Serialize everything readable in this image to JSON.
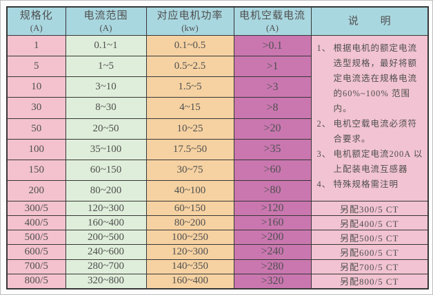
{
  "table": {
    "headers": [
      {
        "title": "规格化",
        "unit": "(A)"
      },
      {
        "title": "电流范围",
        "unit": "(A)"
      },
      {
        "title": "对应电机功率",
        "unit": "(kw)"
      },
      {
        "title": "电机空载电流",
        "unit": "(A)"
      },
      {
        "title": "说  明",
        "unit": ""
      }
    ],
    "rows": [
      {
        "spec": "1",
        "range": "0.1~1",
        "power": "0.1~0.5",
        "noload": ">0.1",
        "note": ""
      },
      {
        "spec": "5",
        "range": "1~5",
        "power": "0.5~2.5",
        "noload": ">1",
        "note": ""
      },
      {
        "spec": "10",
        "range": "3~10",
        "power": "1.5~5",
        "noload": ">3",
        "note": ""
      },
      {
        "spec": "30",
        "range": "8~30",
        "power": "4~15",
        "noload": ">8",
        "note": ""
      },
      {
        "spec": "50",
        "range": "20~50",
        "power": "10~25",
        "noload": ">20",
        "note": ""
      },
      {
        "spec": "100",
        "range": "35~100",
        "power": "17.5~50",
        "noload": ">35",
        "note": ""
      },
      {
        "spec": "150",
        "range": "60~150",
        "power": "30~75",
        "noload": ">60",
        "note": ""
      },
      {
        "spec": "200",
        "range": "80~200",
        "power": "40~100",
        "noload": ">80",
        "note": ""
      },
      {
        "spec": "300/5",
        "range": "120~300",
        "power": "60~150",
        "noload": ">120",
        "note": "另配300/5 CT"
      },
      {
        "spec": "400/5",
        "range": "160~400",
        "power": "80~200",
        "noload": ">160",
        "note": "另配400/5 CT"
      },
      {
        "spec": "500/5",
        "range": "200~500",
        "power": "100~250",
        "noload": ">200",
        "note": "另配500/5 CT"
      },
      {
        "spec": "600/5",
        "range": "240~600",
        "power": "120~300",
        "noload": ">240",
        "note": "另配600/5 CT"
      },
      {
        "spec": "700/5",
        "range": "280~700",
        "power": "140~350",
        "noload": ">280",
        "note": "另配700/5 CT"
      },
      {
        "spec": "800/5",
        "range": "320~800",
        "power": "160~400",
        "noload": ">320",
        "note": "另配800/5 CT"
      }
    ],
    "notes": [
      {
        "num": "1、",
        "text": "根据电机的额定电流选型规格，最好将额定电流选在规格电流的60%~100%  范围内。"
      },
      {
        "num": "2、",
        "text": "电机空载电流必须符合要求。"
      },
      {
        "num": "3、",
        "text": "电机额定电流200A 以上配装电流互感器"
      },
      {
        "num": "4、",
        "text": "特殊规格需注明"
      }
    ]
  },
  "colors": {
    "header_bg": "#a9d7e0",
    "spec_bg": "#f3c2ce",
    "range_bg": "#dfeeda",
    "power_bg": "#f6d2a2",
    "noload_bg": "#ca77b0",
    "note_bg": "#f2c3d2",
    "border": "#353535",
    "frame": "#bdbdbd",
    "text": "#4f4f4f"
  }
}
